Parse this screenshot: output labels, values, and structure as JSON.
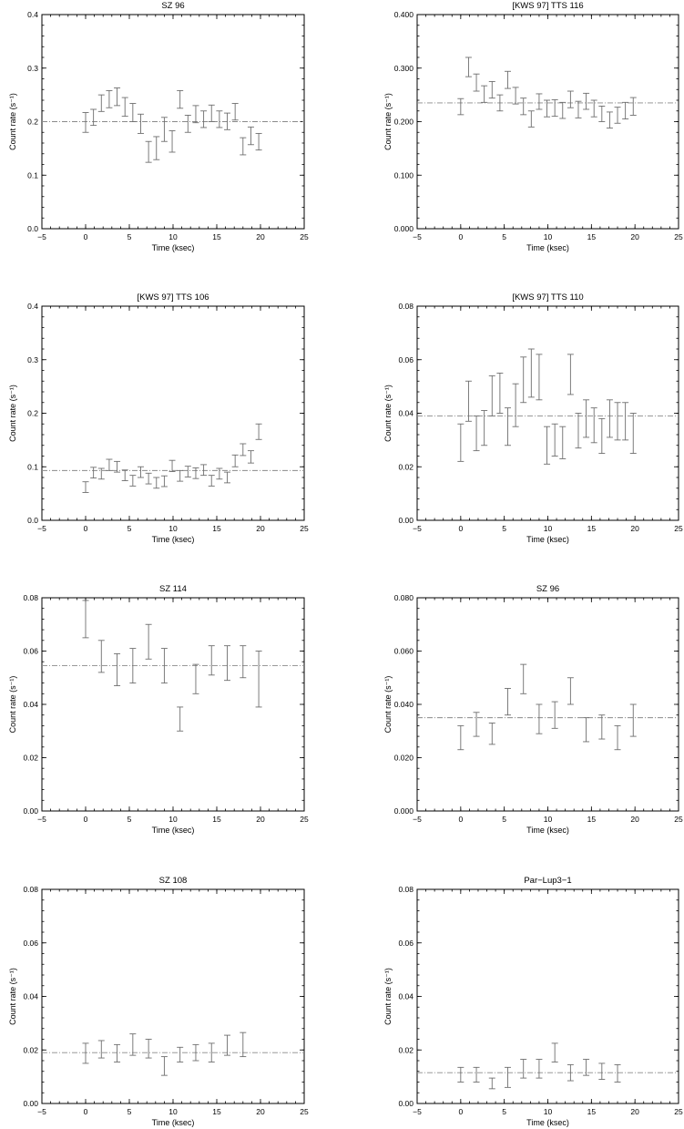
{
  "chart_data": [
    {
      "type": "errorbar",
      "title": "SZ 96",
      "xlabel": "Time (ksec)",
      "ylabel": "Count rate (s⁻¹)",
      "xlim": [
        -5,
        25
      ],
      "ylim": [
        0,
        0.4
      ],
      "xticks": [
        "−5",
        "0",
        "5",
        "10",
        "15",
        "20",
        "25"
      ],
      "yticks": [
        "0.0",
        "0.1",
        "0.2",
        "0.3",
        "0.4"
      ],
      "mean": 0.2,
      "points": [
        {
          "x": 0.0,
          "lo": 0.18,
          "hi": 0.217
        },
        {
          "x": 0.9,
          "lo": 0.193,
          "hi": 0.223
        },
        {
          "x": 1.8,
          "lo": 0.219,
          "hi": 0.25
        },
        {
          "x": 2.7,
          "lo": 0.226,
          "hi": 0.258
        },
        {
          "x": 3.6,
          "lo": 0.23,
          "hi": 0.263
        },
        {
          "x": 4.5,
          "lo": 0.21,
          "hi": 0.245
        },
        {
          "x": 5.4,
          "lo": 0.2,
          "hi": 0.234
        },
        {
          "x": 6.3,
          "lo": 0.178,
          "hi": 0.214
        },
        {
          "x": 7.2,
          "lo": 0.124,
          "hi": 0.163
        },
        {
          "x": 8.1,
          "lo": 0.129,
          "hi": 0.172
        },
        {
          "x": 9.0,
          "lo": 0.163,
          "hi": 0.208
        },
        {
          "x": 9.9,
          "lo": 0.143,
          "hi": 0.183
        },
        {
          "x": 10.8,
          "lo": 0.225,
          "hi": 0.258
        },
        {
          "x": 11.7,
          "lo": 0.18,
          "hi": 0.212
        },
        {
          "x": 12.6,
          "lo": 0.198,
          "hi": 0.23
        },
        {
          "x": 13.5,
          "lo": 0.189,
          "hi": 0.22
        },
        {
          "x": 14.4,
          "lo": 0.2,
          "hi": 0.231
        },
        {
          "x": 15.3,
          "lo": 0.189,
          "hi": 0.22
        },
        {
          "x": 16.2,
          "lo": 0.185,
          "hi": 0.216
        },
        {
          "x": 17.1,
          "lo": 0.203,
          "hi": 0.234
        },
        {
          "x": 18.0,
          "lo": 0.138,
          "hi": 0.17
        },
        {
          "x": 18.9,
          "lo": 0.157,
          "hi": 0.19
        },
        {
          "x": 19.8,
          "lo": 0.147,
          "hi": 0.178
        }
      ]
    },
    {
      "type": "errorbar",
      "title": "[KWS 97] TTS 116",
      "xlabel": "Time (ksec)",
      "ylabel": "Count rate (s⁻¹)",
      "xlim": [
        -5,
        25
      ],
      "ylim": [
        0,
        0.4
      ],
      "xticks": [
        "−5",
        "0",
        "5",
        "10",
        "15",
        "20",
        "25"
      ],
      "yticks": [
        "0.000",
        "0.100",
        "0.200",
        "0.300",
        "0.400"
      ],
      "mean": 0.235,
      "points": [
        {
          "x": 0.0,
          "lo": 0.213,
          "hi": 0.243
        },
        {
          "x": 0.9,
          "lo": 0.284,
          "hi": 0.32
        },
        {
          "x": 1.8,
          "lo": 0.257,
          "hi": 0.289
        },
        {
          "x": 2.7,
          "lo": 0.236,
          "hi": 0.267
        },
        {
          "x": 3.6,
          "lo": 0.244,
          "hi": 0.275
        },
        {
          "x": 4.5,
          "lo": 0.22,
          "hi": 0.25
        },
        {
          "x": 5.4,
          "lo": 0.262,
          "hi": 0.294
        },
        {
          "x": 6.3,
          "lo": 0.233,
          "hi": 0.264
        },
        {
          "x": 7.2,
          "lo": 0.213,
          "hi": 0.244
        },
        {
          "x": 8.1,
          "lo": 0.19,
          "hi": 0.22
        },
        {
          "x": 9.0,
          "lo": 0.223,
          "hi": 0.252
        },
        {
          "x": 9.9,
          "lo": 0.209,
          "hi": 0.24
        },
        {
          "x": 10.8,
          "lo": 0.21,
          "hi": 0.241
        },
        {
          "x": 11.7,
          "lo": 0.206,
          "hi": 0.236
        },
        {
          "x": 12.6,
          "lo": 0.226,
          "hi": 0.257
        },
        {
          "x": 13.5,
          "lo": 0.207,
          "hi": 0.238
        },
        {
          "x": 14.4,
          "lo": 0.223,
          "hi": 0.253
        },
        {
          "x": 15.3,
          "lo": 0.209,
          "hi": 0.24
        },
        {
          "x": 16.2,
          "lo": 0.2,
          "hi": 0.229
        },
        {
          "x": 17.1,
          "lo": 0.188,
          "hi": 0.218
        },
        {
          "x": 18.0,
          "lo": 0.197,
          "hi": 0.227
        },
        {
          "x": 18.9,
          "lo": 0.205,
          "hi": 0.236
        },
        {
          "x": 19.8,
          "lo": 0.212,
          "hi": 0.245
        }
      ]
    },
    {
      "type": "errorbar",
      "title": "[KWS 97] TTS 106",
      "xlabel": "Time (ksec)",
      "ylabel": "Count rate (s⁻¹)",
      "xlim": [
        -5,
        25
      ],
      "ylim": [
        0,
        0.4
      ],
      "xticks": [
        "−5",
        "0",
        "5",
        "10",
        "15",
        "20",
        "25"
      ],
      "yticks": [
        "0.0",
        "0.1",
        "0.2",
        "0.3",
        "0.4"
      ],
      "mean": 0.093,
      "points": [
        {
          "x": 0.0,
          "lo": 0.052,
          "hi": 0.072
        },
        {
          "x": 0.9,
          "lo": 0.079,
          "hi": 0.099
        },
        {
          "x": 1.8,
          "lo": 0.077,
          "hi": 0.097
        },
        {
          "x": 2.7,
          "lo": 0.093,
          "hi": 0.114
        },
        {
          "x": 3.6,
          "lo": 0.09,
          "hi": 0.11
        },
        {
          "x": 4.5,
          "lo": 0.074,
          "hi": 0.094
        },
        {
          "x": 5.4,
          "lo": 0.064,
          "hi": 0.084
        },
        {
          "x": 6.3,
          "lo": 0.08,
          "hi": 0.1
        },
        {
          "x": 7.2,
          "lo": 0.068,
          "hi": 0.088
        },
        {
          "x": 8.1,
          "lo": 0.06,
          "hi": 0.08
        },
        {
          "x": 9.0,
          "lo": 0.063,
          "hi": 0.083
        },
        {
          "x": 9.9,
          "lo": 0.091,
          "hi": 0.112
        },
        {
          "x": 10.8,
          "lo": 0.073,
          "hi": 0.093
        },
        {
          "x": 11.7,
          "lo": 0.081,
          "hi": 0.101
        },
        {
          "x": 12.6,
          "lo": 0.078,
          "hi": 0.098
        },
        {
          "x": 13.5,
          "lo": 0.084,
          "hi": 0.104
        },
        {
          "x": 14.4,
          "lo": 0.064,
          "hi": 0.084
        },
        {
          "x": 15.3,
          "lo": 0.077,
          "hi": 0.097
        },
        {
          "x": 16.2,
          "lo": 0.07,
          "hi": 0.09
        },
        {
          "x": 17.1,
          "lo": 0.1,
          "hi": 0.122
        },
        {
          "x": 18.0,
          "lo": 0.121,
          "hi": 0.143
        },
        {
          "x": 18.9,
          "lo": 0.107,
          "hi": 0.13
        },
        {
          "x": 19.8,
          "lo": 0.151,
          "hi": 0.18
        }
      ]
    },
    {
      "type": "errorbar",
      "title": "[KWS 97] TTS 110",
      "xlabel": "Time (ksec)",
      "ylabel": "Count rate (s⁻¹)",
      "xlim": [
        -5,
        25
      ],
      "ylim": [
        0,
        0.08
      ],
      "xticks": [
        "−5",
        "0",
        "5",
        "10",
        "15",
        "20",
        "25"
      ],
      "yticks": [
        "0.00",
        "0.02",
        "0.04",
        "0.06",
        "0.08"
      ],
      "mean": 0.039,
      "points": [
        {
          "x": 0.0,
          "lo": 0.022,
          "hi": 0.036
        },
        {
          "x": 0.9,
          "lo": 0.037,
          "hi": 0.052
        },
        {
          "x": 1.8,
          "lo": 0.026,
          "hi": 0.039
        },
        {
          "x": 2.7,
          "lo": 0.028,
          "hi": 0.041
        },
        {
          "x": 3.6,
          "lo": 0.039,
          "hi": 0.054
        },
        {
          "x": 4.5,
          "lo": 0.04,
          "hi": 0.055
        },
        {
          "x": 5.4,
          "lo": 0.028,
          "hi": 0.042
        },
        {
          "x": 6.3,
          "lo": 0.035,
          "hi": 0.051
        },
        {
          "x": 7.2,
          "lo": 0.044,
          "hi": 0.061
        },
        {
          "x": 8.1,
          "lo": 0.046,
          "hi": 0.064
        },
        {
          "x": 9.0,
          "lo": 0.045,
          "hi": 0.062
        },
        {
          "x": 9.9,
          "lo": 0.021,
          "hi": 0.035
        },
        {
          "x": 10.8,
          "lo": 0.024,
          "hi": 0.036
        },
        {
          "x": 11.7,
          "lo": 0.023,
          "hi": 0.035
        },
        {
          "x": 12.6,
          "lo": 0.047,
          "hi": 0.062
        },
        {
          "x": 13.5,
          "lo": 0.027,
          "hi": 0.04
        },
        {
          "x": 14.4,
          "lo": 0.031,
          "hi": 0.045
        },
        {
          "x": 15.3,
          "lo": 0.029,
          "hi": 0.042
        },
        {
          "x": 16.2,
          "lo": 0.025,
          "hi": 0.038
        },
        {
          "x": 17.1,
          "lo": 0.031,
          "hi": 0.045
        },
        {
          "x": 18.0,
          "lo": 0.03,
          "hi": 0.044
        },
        {
          "x": 18.9,
          "lo": 0.03,
          "hi": 0.044
        },
        {
          "x": 19.8,
          "lo": 0.025,
          "hi": 0.04
        }
      ]
    },
    {
      "type": "errorbar",
      "title": "SZ 114",
      "xlabel": "Time (ksec)",
      "ylabel": "Count rate (s⁻¹)",
      "xlim": [
        -5,
        25
      ],
      "ylim": [
        0,
        0.08
      ],
      "xticks": [
        "−5",
        "0",
        "5",
        "10",
        "15",
        "20",
        "25"
      ],
      "yticks": [
        "0.00",
        "0.02",
        "0.04",
        "0.06",
        "0.08"
      ],
      "mean": 0.0545,
      "points": [
        {
          "x": 0.0,
          "lo": 0.065,
          "hi": 0.079
        },
        {
          "x": 1.8,
          "lo": 0.052,
          "hi": 0.064
        },
        {
          "x": 3.6,
          "lo": 0.047,
          "hi": 0.059
        },
        {
          "x": 5.4,
          "lo": 0.048,
          "hi": 0.061
        },
        {
          "x": 7.2,
          "lo": 0.057,
          "hi": 0.07
        },
        {
          "x": 9.0,
          "lo": 0.048,
          "hi": 0.061
        },
        {
          "x": 10.8,
          "lo": 0.03,
          "hi": 0.039
        },
        {
          "x": 12.6,
          "lo": 0.044,
          "hi": 0.055
        },
        {
          "x": 14.4,
          "lo": 0.051,
          "hi": 0.062
        },
        {
          "x": 16.2,
          "lo": 0.049,
          "hi": 0.062
        },
        {
          "x": 18.0,
          "lo": 0.05,
          "hi": 0.062
        },
        {
          "x": 19.8,
          "lo": 0.039,
          "hi": 0.06
        }
      ]
    },
    {
      "type": "errorbar",
      "title": "SZ 96",
      "xlabel": "Time (ksec)",
      "ylabel": "Count rate (s⁻¹)",
      "xlim": [
        -5,
        25
      ],
      "ylim": [
        0,
        0.08
      ],
      "xticks": [
        "−5",
        "0",
        "5",
        "10",
        "15",
        "20",
        "25"
      ],
      "yticks": [
        "0.000",
        "0.020",
        "0.040",
        "0.060",
        "0.080"
      ],
      "mean": 0.035,
      "points": [
        {
          "x": 0.0,
          "lo": 0.023,
          "hi": 0.032
        },
        {
          "x": 1.8,
          "lo": 0.028,
          "hi": 0.037
        },
        {
          "x": 3.6,
          "lo": 0.025,
          "hi": 0.033
        },
        {
          "x": 5.4,
          "lo": 0.036,
          "hi": 0.046
        },
        {
          "x": 7.2,
          "lo": 0.044,
          "hi": 0.055
        },
        {
          "x": 9.0,
          "lo": 0.029,
          "hi": 0.04
        },
        {
          "x": 10.8,
          "lo": 0.031,
          "hi": 0.041
        },
        {
          "x": 12.6,
          "lo": 0.04,
          "hi": 0.05
        },
        {
          "x": 14.4,
          "lo": 0.026,
          "hi": 0.035
        },
        {
          "x": 16.2,
          "lo": 0.027,
          "hi": 0.036
        },
        {
          "x": 18.0,
          "lo": 0.023,
          "hi": 0.032
        },
        {
          "x": 19.8,
          "lo": 0.028,
          "hi": 0.04
        }
      ]
    },
    {
      "type": "errorbar",
      "title": "SZ 108",
      "xlabel": "Time (ksec)",
      "ylabel": "Count rate (s⁻¹)",
      "xlim": [
        -5,
        25
      ],
      "ylim": [
        0,
        0.08
      ],
      "xticks": [
        "−5",
        "0",
        "5",
        "10",
        "15",
        "20",
        "25"
      ],
      "yticks": [
        "0.00",
        "0.02",
        "0.04",
        "0.06",
        "0.08"
      ],
      "mean": 0.019,
      "points": [
        {
          "x": 0.0,
          "lo": 0.015,
          "hi": 0.0225
        },
        {
          "x": 1.8,
          "lo": 0.017,
          "hi": 0.0235
        },
        {
          "x": 3.6,
          "lo": 0.0155,
          "hi": 0.022
        },
        {
          "x": 5.4,
          "lo": 0.018,
          "hi": 0.026
        },
        {
          "x": 7.2,
          "lo": 0.017,
          "hi": 0.024
        },
        {
          "x": 9.0,
          "lo": 0.0105,
          "hi": 0.0175
        },
        {
          "x": 10.8,
          "lo": 0.0155,
          "hi": 0.021
        },
        {
          "x": 12.6,
          "lo": 0.016,
          "hi": 0.022
        },
        {
          "x": 14.4,
          "lo": 0.0155,
          "hi": 0.0225
        },
        {
          "x": 16.2,
          "lo": 0.018,
          "hi": 0.0255
        },
        {
          "x": 18.0,
          "lo": 0.0175,
          "hi": 0.0265
        }
      ]
    },
    {
      "type": "errorbar",
      "title": "Par−Lup3−1",
      "xlabel": "Time (ksec)",
      "ylabel": "Count rate (s⁻¹)",
      "xlim": [
        -5,
        25
      ],
      "ylim": [
        0,
        0.08
      ],
      "xticks": [
        "−5",
        "0",
        "5",
        "10",
        "15",
        "20",
        "25"
      ],
      "yticks": [
        "0.00",
        "0.02",
        "0.04",
        "0.06",
        "0.08"
      ],
      "mean": 0.0115,
      "points": [
        {
          "x": 0.0,
          "lo": 0.008,
          "hi": 0.0135
        },
        {
          "x": 1.8,
          "lo": 0.008,
          "hi": 0.0135
        },
        {
          "x": 3.6,
          "lo": 0.0055,
          "hi": 0.0095
        },
        {
          "x": 5.4,
          "lo": 0.006,
          "hi": 0.0135
        },
        {
          "x": 7.2,
          "lo": 0.0095,
          "hi": 0.0165
        },
        {
          "x": 9.0,
          "lo": 0.0095,
          "hi": 0.0165
        },
        {
          "x": 10.8,
          "lo": 0.0155,
          "hi": 0.0225
        },
        {
          "x": 12.6,
          "lo": 0.0085,
          "hi": 0.0145
        },
        {
          "x": 14.4,
          "lo": 0.0105,
          "hi": 0.0165
        },
        {
          "x": 16.2,
          "lo": 0.009,
          "hi": 0.015
        },
        {
          "x": 18.0,
          "lo": 0.008,
          "hi": 0.0145
        }
      ]
    }
  ]
}
